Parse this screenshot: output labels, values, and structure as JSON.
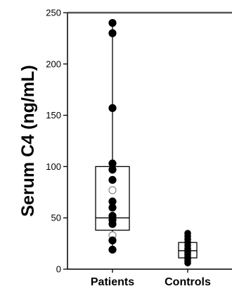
{
  "chart_data": {
    "type": "box",
    "ylabel": "Serum C4 (ng/mL)",
    "ylim": [
      0,
      250
    ],
    "yticks": [
      0,
      50,
      100,
      150,
      200,
      250
    ],
    "categories": [
      "Patients",
      "Controls"
    ],
    "grid": false,
    "groups": [
      {
        "name": "Patients",
        "whisker_low": 19,
        "q1": 38,
        "median": 50,
        "q3": 100,
        "whisker_high": 240,
        "points": [
          {
            "y": 240,
            "filled": true
          },
          {
            "y": 230,
            "filled": true
          },
          {
            "y": 157,
            "filled": true
          },
          {
            "y": 103,
            "filled": true
          },
          {
            "y": 97,
            "filled": true
          },
          {
            "y": 87,
            "filled": true
          },
          {
            "y": 77,
            "filled": false
          },
          {
            "y": 66,
            "filled": true
          },
          {
            "y": 60,
            "filled": true
          },
          {
            "y": 52,
            "filled": true
          },
          {
            "y": 48,
            "filled": true
          },
          {
            "y": 44,
            "filled": true
          },
          {
            "y": 33,
            "filled": false
          },
          {
            "y": 28,
            "filled": true
          },
          {
            "y": 19,
            "filled": true
          }
        ]
      },
      {
        "name": "Controls",
        "whisker_low": 7,
        "q1": 11,
        "median": 18,
        "q3": 26,
        "whisker_high": 35,
        "points": [
          {
            "y": 35,
            "filled": true
          },
          {
            "y": 32,
            "filled": true
          },
          {
            "y": 29,
            "filled": true
          },
          {
            "y": 26,
            "filled": true
          },
          {
            "y": 23,
            "filled": true
          },
          {
            "y": 20,
            "filled": true
          },
          {
            "y": 18,
            "filled": true
          },
          {
            "y": 16,
            "filled": true
          },
          {
            "y": 14,
            "filled": true
          },
          {
            "y": 12,
            "filled": true
          },
          {
            "y": 10,
            "filled": true
          },
          {
            "y": 8,
            "filled": true
          },
          {
            "y": 6,
            "filled": true
          }
        ]
      }
    ]
  }
}
